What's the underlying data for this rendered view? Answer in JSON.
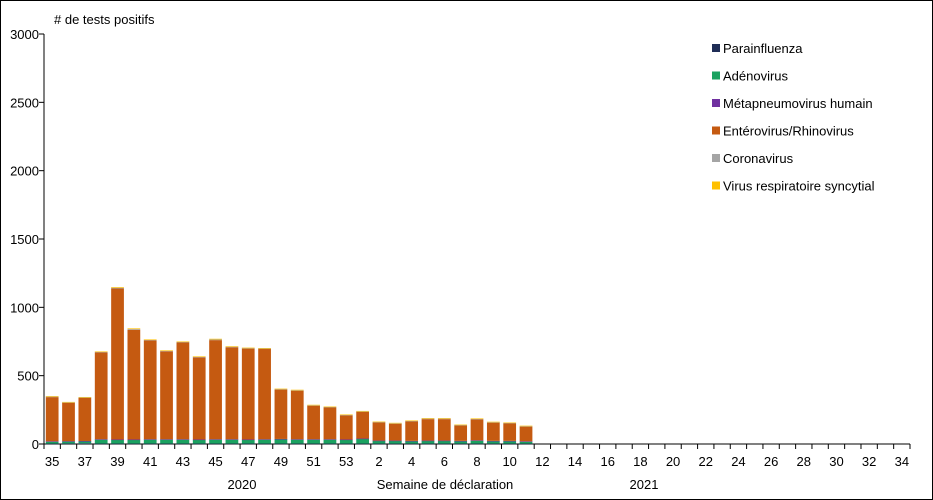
{
  "chart_data": {
    "type": "bar",
    "stacked": true,
    "ylabel": "# de tests positifs",
    "xlabel": "Semaine de déclaration",
    "ylim": [
      0,
      3000
    ],
    "yticks": [
      0,
      500,
      1000,
      1500,
      2000,
      2500,
      3000
    ],
    "categories": [
      "35",
      "36",
      "37",
      "38",
      "39",
      "40",
      "41",
      "42",
      "43",
      "44",
      "45",
      "46",
      "47",
      "48",
      "49",
      "50",
      "51",
      "52",
      "53",
      "1",
      "2",
      "3",
      "4",
      "5",
      "6",
      "7",
      "8",
      "9",
      "10",
      "11",
      "12",
      "13",
      "14",
      "15",
      "16",
      "17",
      "18",
      "19",
      "20",
      "21",
      "22",
      "23",
      "24",
      "25",
      "26",
      "27",
      "28",
      "29",
      "30",
      "31",
      "32",
      "33",
      "34"
    ],
    "tick_labels": [
      "35",
      "37",
      "39",
      "41",
      "43",
      "45",
      "47",
      "49",
      "51",
      "53",
      "2",
      "4",
      "6",
      "8",
      "10",
      "12",
      "14",
      "16",
      "18",
      "20",
      "22",
      "24",
      "26",
      "28",
      "30",
      "32",
      "34"
    ],
    "year_labels": [
      "2020",
      "2021"
    ],
    "legend_position": "top-right",
    "series": [
      {
        "name": "Parainfluenza",
        "color": "#1f2d56",
        "values": [
          3,
          4,
          5,
          3,
          3,
          3,
          3,
          3,
          3,
          3,
          3,
          3,
          3,
          3,
          3,
          3,
          3,
          3,
          3,
          3,
          3,
          3,
          3,
          3,
          3,
          3,
          3,
          3,
          3,
          3,
          0,
          0,
          0,
          0,
          0,
          0,
          0,
          0,
          0,
          0,
          0,
          0,
          0,
          0,
          0,
          0,
          0,
          0,
          0,
          0,
          0,
          0,
          0
        ]
      },
      {
        "name": "Adénovirus",
        "color": "#1aa260",
        "values": [
          15,
          15,
          15,
          30,
          28,
          28,
          30,
          30,
          30,
          28,
          30,
          30,
          28,
          30,
          32,
          30,
          30,
          30,
          28,
          35,
          20,
          20,
          18,
          20,
          20,
          18,
          22,
          18,
          18,
          15,
          0,
          0,
          0,
          0,
          0,
          0,
          0,
          0,
          0,
          0,
          0,
          0,
          0,
          0,
          0,
          0,
          0,
          0,
          0,
          0,
          0,
          0,
          0
        ]
      },
      {
        "name": "Métapneumovirus humain",
        "color": "#7030a0",
        "values": [
          2,
          2,
          2,
          2,
          2,
          2,
          2,
          2,
          2,
          2,
          2,
          2,
          2,
          2,
          2,
          2,
          2,
          2,
          2,
          2,
          2,
          2,
          2,
          2,
          2,
          2,
          2,
          2,
          2,
          2,
          0,
          0,
          0,
          0,
          0,
          0,
          0,
          0,
          0,
          0,
          0,
          0,
          0,
          0,
          0,
          0,
          0,
          0,
          0,
          0,
          0,
          0,
          0
        ]
      },
      {
        "name": "Entérovirus/Rhinovirus",
        "color": "#c55a11",
        "values": [
          323,
          280,
          315,
          635,
          1105,
          803,
          723,
          643,
          708,
          601,
          725,
          673,
          665,
          660,
          361,
          355,
          245,
          232,
          176,
          195,
          132,
          123,
          142,
          157,
          157,
          112,
          153,
          133,
          127,
          107,
          0,
          0,
          0,
          0,
          0,
          0,
          0,
          0,
          0,
          0,
          0,
          0,
          0,
          0,
          0,
          0,
          0,
          0,
          0,
          0,
          0,
          0,
          0
        ]
      },
      {
        "name": "Coronavirus",
        "color": "#a5a5a5",
        "values": [
          5,
          5,
          5,
          5,
          5,
          5,
          5,
          5,
          5,
          5,
          5,
          5,
          5,
          5,
          5,
          5,
          5,
          5,
          5,
          5,
          5,
          5,
          5,
          5,
          5,
          5,
          5,
          5,
          5,
          5,
          0,
          0,
          0,
          0,
          0,
          0,
          0,
          0,
          0,
          0,
          0,
          0,
          0,
          0,
          0,
          0,
          0,
          0,
          0,
          0,
          0,
          0,
          0
        ]
      },
      {
        "name": "Virus respiratoire syncytial",
        "color": "#ffc000",
        "values": [
          2,
          2,
          2,
          2,
          5,
          5,
          2,
          2,
          2,
          2,
          5,
          2,
          2,
          2,
          2,
          2,
          2,
          2,
          2,
          2,
          2,
          2,
          2,
          2,
          2,
          2,
          2,
          2,
          2,
          2,
          0,
          0,
          0,
          0,
          0,
          0,
          0,
          0,
          0,
          0,
          0,
          0,
          0,
          0,
          0,
          0,
          0,
          0,
          0,
          0,
          0,
          0,
          0
        ]
      }
    ]
  }
}
